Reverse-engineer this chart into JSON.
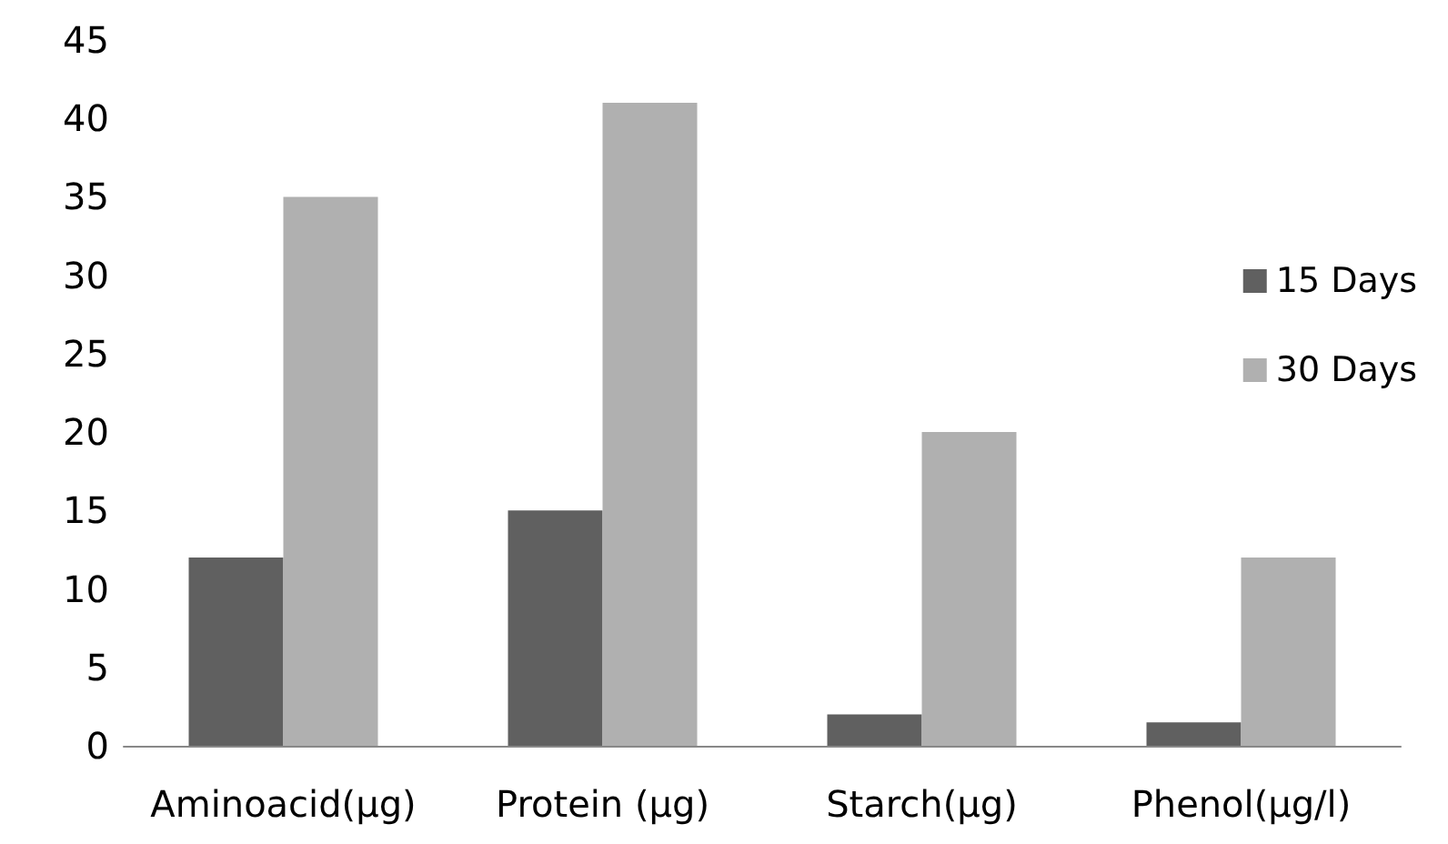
{
  "chart_data": {
    "type": "bar",
    "categories": [
      "Aminoacid(µg)",
      "Protein (µg)",
      "Starch(µg)",
      "Phenol(µg/l)"
    ],
    "series": [
      {
        "name": "15 Days",
        "color": "#606060",
        "values": [
          12,
          15,
          2,
          1.5
        ]
      },
      {
        "name": "30 Days",
        "color": "#b0b0b0",
        "values": [
          35,
          41,
          20,
          12
        ]
      }
    ],
    "ylim": [
      0,
      45
    ],
    "yticks": [
      0,
      5,
      10,
      15,
      20,
      25,
      30,
      35,
      40,
      45
    ],
    "grid": false,
    "legend": "right"
  }
}
